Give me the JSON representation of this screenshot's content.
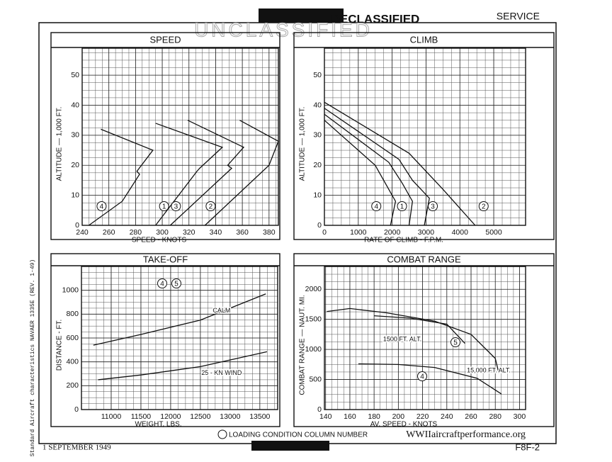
{
  "header": {
    "service": "SERVICE",
    "stamp": "DECLASSIFIED",
    "watermark": "UNCLASSIFIED",
    "date": "1 SEPTEMBER 1949",
    "model": "F8F-2",
    "legend_note": "LOADING CONDITION COLUMN NUMBER",
    "site": "WWIIaircraftperformance.org",
    "side": "Standard Aircraft characteristics NAVAER 1335E (REV. 1-49)"
  },
  "chart_data": [
    {
      "type": "line",
      "title": "SPEED",
      "xlabel": "SPEED - KNOTS",
      "ylabel": "ALTITUDE — 1,000 FT.",
      "xlim": [
        240,
        387
      ],
      "ylim": [
        0,
        59
      ],
      "xticks": [
        240,
        260,
        280,
        300,
        320,
        340,
        360,
        380
      ],
      "yticks": [
        0,
        10,
        20,
        30,
        40,
        50
      ],
      "grid": true,
      "series": [
        {
          "name": "4",
          "color": "#111",
          "x": [
            245,
            270,
            283,
            281,
            293,
            254
          ],
          "values": [
            0,
            8,
            17,
            18,
            25,
            32
          ]
        },
        {
          "name": "1",
          "color": "#111",
          "x": [
            295,
            326,
            328,
            345,
            295
          ],
          "values": [
            0,
            18,
            19,
            26,
            34
          ]
        },
        {
          "name": "3",
          "color": "#111",
          "x": [
            306,
            352,
            349,
            361,
            319
          ],
          "values": [
            0,
            19,
            20,
            26,
            35
          ]
        },
        {
          "name": "2",
          "color": "#111",
          "x": [
            332,
            380,
            387,
            358
          ],
          "values": [
            0,
            20,
            28,
            35
          ]
        }
      ]
    },
    {
      "type": "line",
      "title": "CLIMB",
      "xlabel": "RATE OF CLIMB - F.P.M.",
      "ylabel": "ALTITUDE — 1,000 FT.",
      "xlim": [
        0,
        5940
      ],
      "ylim": [
        0,
        59
      ],
      "xticks": [
        0,
        1000,
        2000,
        3000,
        4000,
        5000
      ],
      "yticks": [
        0,
        10,
        20,
        30,
        40,
        50
      ],
      "grid": true,
      "series": [
        {
          "name": "4",
          "color": "#111",
          "x": [
            0,
            1500,
            1900,
            2100,
            1950
          ],
          "values": [
            35,
            20,
            12,
            8,
            0
          ]
        },
        {
          "name": "1",
          "color": "#111",
          "x": [
            0,
            1900,
            2300,
            2600,
            2500
          ],
          "values": [
            37,
            21,
            14,
            8,
            0
          ]
        },
        {
          "name": "3",
          "color": "#111",
          "x": [
            0,
            2200,
            2600,
            3100,
            2950
          ],
          "values": [
            39,
            22,
            15,
            9,
            0
          ]
        },
        {
          "name": "2",
          "color": "#111",
          "x": [
            0,
            2500,
            3500,
            4450
          ],
          "values": [
            41,
            24,
            12,
            0
          ]
        }
      ]
    },
    {
      "type": "line",
      "title": "TAKE-OFF",
      "xlabel": "WEIGHT, LBS.",
      "ylabel": "DISTANCE - FT.",
      "xlim": [
        10500,
        13800
      ],
      "ylim": [
        0,
        1200
      ],
      "xticks": [
        11000,
        11500,
        12000,
        12500,
        13000,
        13500
      ],
      "yticks": [
        0,
        200,
        400,
        600,
        800,
        1000
      ],
      "grid": true,
      "annotations": [
        "4",
        "5"
      ],
      "series": [
        {
          "name": "CALM",
          "color": "#111",
          "x": [
            10700,
            11500,
            12500,
            13600
          ],
          "values": [
            540,
            630,
            750,
            970
          ]
        },
        {
          "name": "25 - KN WIND",
          "color": "#111",
          "x": [
            10780,
            11500,
            12500,
            13620
          ],
          "values": [
            250,
            290,
            360,
            485
          ]
        }
      ]
    },
    {
      "type": "line",
      "title": "COMBAT RANGE",
      "xlabel": "AV. SPEED - KNOTS",
      "ylabel": "COMBAT RANGE — NAUT. MI.",
      "xlim": [
        139,
        305
      ],
      "ylim": [
        0,
        2380
      ],
      "xticks": [
        140,
        160,
        180,
        200,
        220,
        240,
        260,
        280,
        300
      ],
      "yticks": [
        0,
        500,
        1000,
        1500,
        2000
      ],
      "grid": true,
      "annotations": [
        "5"
      ],
      "series": [
        {
          "name": "15,000 FT. ALT.",
          "color": "#111",
          "x": [
            141,
            160,
            190,
            230,
            260,
            280,
            283
          ],
          "values": [
            1630,
            1680,
            1610,
            1470,
            1250,
            850,
            600
          ]
        },
        {
          "name": "1500 FT. ALT.",
          "color": "#111",
          "x": [
            180,
            210,
            240,
            255
          ],
          "values": [
            1560,
            1520,
            1420,
            1100
          ]
        },
        {
          "name": "4",
          "color": "#111",
          "x": [
            167,
            200,
            230,
            265,
            285
          ],
          "values": [
            760,
            750,
            700,
            520,
            260
          ]
        }
      ]
    }
  ]
}
